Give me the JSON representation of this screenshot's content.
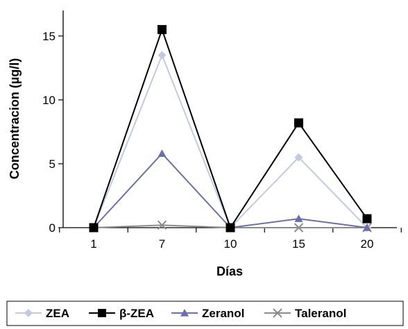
{
  "chart_data": {
    "type": "line",
    "xlabel": "Días",
    "ylabel": "Concentracion (µg/l)",
    "categories": [
      "1",
      "7",
      "10",
      "15",
      "20"
    ],
    "ylim": [
      0,
      17
    ],
    "yticks": [
      "0",
      "5",
      "10",
      "15"
    ],
    "grid": false,
    "legend_position": "bottom",
    "series": [
      {
        "name": "ZEA",
        "values": [
          0,
          13.5,
          0,
          5.5,
          0
        ],
        "color": "#c4c8e3",
        "marker": "diamond"
      },
      {
        "name": "β-ZEA",
        "values": [
          0,
          15.5,
          0,
          8.2,
          0.7
        ],
        "color": "#000000",
        "marker": "square"
      },
      {
        "name": "Zeranol",
        "values": [
          0,
          5.8,
          0,
          0.7,
          0
        ],
        "color": "#6b6fa8",
        "marker": "triangle"
      },
      {
        "name": "Taleranol",
        "values": [
          0,
          0.2,
          0,
          0,
          0
        ],
        "color": "#8c8c8c",
        "marker": "x"
      }
    ]
  }
}
